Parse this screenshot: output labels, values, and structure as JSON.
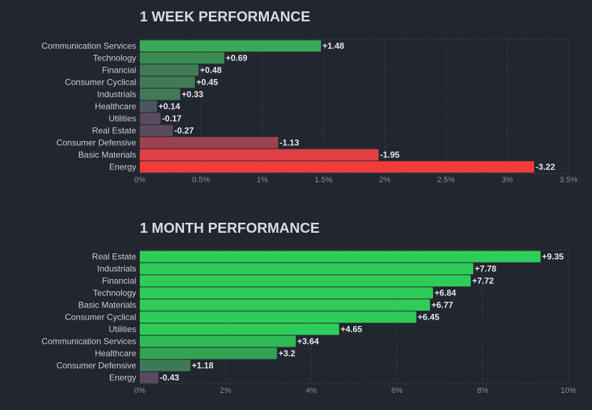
{
  "chart_data": [
    {
      "type": "bar",
      "orientation": "horizontal",
      "title": "1 WEEK PERFORMANCE",
      "categories": [
        "Communication Services",
        "Technology",
        "Financial",
        "Consumer Cyclical",
        "Industrials",
        "Healthcare",
        "Utilities",
        "Real Estate",
        "Consumer Defensive",
        "Basic Materials",
        "Energy"
      ],
      "values": [
        1.48,
        0.69,
        0.48,
        0.45,
        0.33,
        0.14,
        -0.17,
        -0.27,
        -1.13,
        -1.95,
        -3.22
      ],
      "value_labels": [
        "+1.48",
        "+0.69",
        "+0.48",
        "+0.45",
        "+0.33",
        "+0.14",
        "-0.17",
        "-0.27",
        "-1.13",
        "-1.95",
        "-3.22"
      ],
      "xlim": [
        0,
        3.5
      ],
      "xticks": [
        "0%",
        "0.5%",
        "1%",
        "1.5%",
        "2%",
        "2.5%",
        "3%",
        "3.5%"
      ],
      "bar_length": "absolute value",
      "grid": true,
      "colors": {
        "positive": [
          "#39a856",
          "#3d8a52",
          "#437a56",
          "#437a56",
          "#437a56",
          "#48585e",
          "#5b4a5d",
          "#5b4a5d",
          "#9b4450",
          "#de4045",
          "#f23b3c"
        ]
      }
    },
    {
      "type": "bar",
      "orientation": "horizontal",
      "title": "1 MONTH PERFORMANCE",
      "categories": [
        "Real Estate",
        "Industrials",
        "Financial",
        "Technology",
        "Basic Materials",
        "Consumer Cyclical",
        "Utilities",
        "Communication Services",
        "Healthcare",
        "Consumer Defensive",
        "Energy"
      ],
      "values": [
        9.35,
        7.78,
        7.72,
        6.84,
        6.77,
        6.45,
        4.65,
        3.64,
        3.2,
        1.18,
        -0.43
      ],
      "value_labels": [
        "+9.35",
        "+7.78",
        "+7.72",
        "+6.84",
        "+6.77",
        "+6.45",
        "+4.65",
        "+3.64",
        "+3.2",
        "+1.18",
        "-0.43"
      ],
      "xlim": [
        0,
        10
      ],
      "xticks": [
        "0%",
        "2%",
        "4%",
        "6%",
        "8%",
        "10%"
      ],
      "bar_length": "absolute value",
      "grid": true,
      "colors": {
        "positive": [
          "#30cc5a",
          "#30cc5a",
          "#30cc5a",
          "#30cc5a",
          "#30cc5a",
          "#30cc5a",
          "#30cc5a",
          "#2fb854",
          "#33a352",
          "#3e7a55",
          "#5b4a5d"
        ]
      }
    }
  ]
}
